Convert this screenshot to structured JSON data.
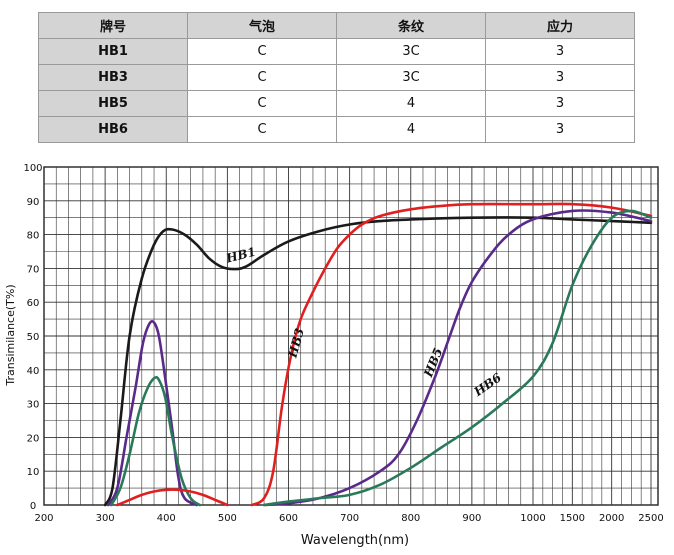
{
  "table": {
    "headers": [
      "牌号",
      "气泡",
      "条纹",
      "应力"
    ],
    "rows": [
      [
        "HB1",
        "C",
        "3C",
        "3"
      ],
      [
        "HB3",
        "C",
        "3C",
        "3"
      ],
      [
        "HB5",
        "C",
        "4",
        "3"
      ],
      [
        "HB6",
        "C",
        "4",
        "3"
      ]
    ]
  },
  "chart_data": {
    "type": "line",
    "xlabel": "Wavelength(nm)",
    "ylabel": "Transimilance(T%)",
    "ylim": [
      0,
      100
    ],
    "yticks": [
      0,
      10,
      20,
      30,
      40,
      50,
      60,
      70,
      80,
      90,
      100
    ],
    "xticks": [
      "200",
      "300",
      "400",
      "500",
      "600",
      "700",
      "800",
      "900",
      "1000",
      "1500",
      "2000",
      "2500"
    ],
    "x_scale_note": "non-uniform axis: linear 200-1000, then 1000-2500 compressed",
    "grid": true,
    "series": [
      {
        "name": "HB1",
        "color": "#1a1a1a",
        "x": [
          300,
          312,
          325,
          340,
          360,
          380,
          395,
          410,
          430,
          450,
          470,
          490,
          510,
          530,
          560,
          600,
          650,
          700,
          750,
          800,
          900,
          1000,
          1500,
          2000,
          2500
        ],
        "y": [
          0,
          5,
          25,
          50,
          67,
          77,
          81,
          81.5,
          80,
          77,
          73,
          70.5,
          69.8,
          70.5,
          74,
          78,
          81,
          83,
          84,
          84.5,
          85,
          85,
          84.5,
          84,
          83.5
        ]
      },
      {
        "name": "",
        "color": "#5a2a8a",
        "x": [
          305,
          320,
          335,
          350,
          362,
          372,
          380,
          388,
          398,
          410,
          420,
          430,
          450
        ],
        "y": [
          0,
          5,
          20,
          35,
          48,
          53.5,
          54,
          50,
          38,
          22,
          8,
          2,
          0
        ]
      },
      {
        "name": "",
        "color": "#2a7a5a",
        "x": [
          310,
          325,
          340,
          355,
          368,
          380,
          388,
          398,
          410,
          425,
          440,
          455
        ],
        "y": [
          0,
          5,
          15,
          27,
          34,
          37.5,
          37,
          32,
          20,
          8,
          2,
          0
        ]
      },
      {
        "name": "",
        "color": "#e02020",
        "x": [
          320,
          340,
          360,
          380,
          400,
          420,
          440,
          460,
          480,
          500
        ],
        "y": [
          0,
          1.5,
          3,
          4,
          4.5,
          4.5,
          4,
          3,
          1.5,
          0
        ]
      },
      {
        "name": "HB3",
        "color": "#e02020",
        "x": [
          540,
          560,
          575,
          590,
          605,
          620,
          640,
          660,
          680,
          700,
          720,
          750,
          800,
          850,
          900,
          1000,
          1500,
          2000,
          2500
        ],
        "y": [
          0,
          2,
          10,
          30,
          45,
          55,
          63,
          70,
          76,
          80,
          83,
          85.5,
          87.5,
          88.5,
          89,
          89,
          89,
          88,
          85.5
        ]
      },
      {
        "name": "HB5",
        "color": "#5a2a8a",
        "x": [
          560,
          600,
          650,
          700,
          750,
          780,
          810,
          840,
          860,
          880,
          900,
          930,
          960,
          1000,
          1500,
          2000,
          2500
        ],
        "y": [
          0,
          0.5,
          2,
          5,
          10,
          15,
          25,
          38,
          48,
          58,
          66,
          74,
          80,
          84.5,
          87,
          86.5,
          84
        ]
      },
      {
        "name": "HB6",
        "color": "#2a7a5a",
        "x": [
          560,
          600,
          650,
          700,
          750,
          800,
          850,
          900,
          950,
          1000,
          1250,
          1500,
          1750,
          2000,
          2250,
          2500
        ],
        "y": [
          0,
          1,
          2,
          3,
          6,
          11,
          17,
          23,
          30,
          38,
          48,
          65,
          77,
          85,
          87,
          85
        ]
      }
    ]
  }
}
